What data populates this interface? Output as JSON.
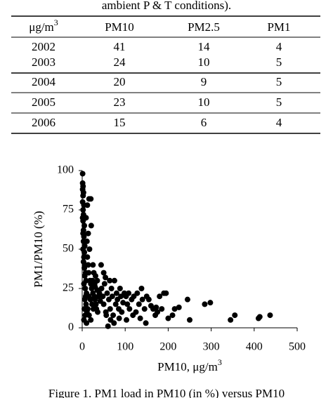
{
  "caption_top": "ambient P & T conditions).",
  "table": {
    "header": [
      {
        "text": "μg/m",
        "sup": "3"
      },
      "PM10",
      "PM2.5",
      "PM1"
    ],
    "rows": [
      [
        "2002",
        "41",
        "14",
        "4"
      ],
      [
        "2003",
        "24",
        "10",
        "5"
      ],
      [
        "2004",
        "20",
        "9",
        "5"
      ],
      [
        "2005",
        "23",
        "10",
        "5"
      ],
      [
        "2006",
        "15",
        "6",
        "4"
      ]
    ]
  },
  "chart_data": {
    "type": "scatter",
    "y_label": "PM1/PM10 (%)",
    "x_label": {
      "text": "PM10, μg/m",
      "sup": "3"
    },
    "xlim": [
      0,
      500
    ],
    "xticks": [
      0,
      100,
      200,
      300,
      400,
      500
    ],
    "ylim": [
      0,
      100
    ],
    "yticks": [
      0,
      25,
      50,
      75,
      100
    ],
    "color": "#000000",
    "x": [
      1,
      1,
      2,
      1,
      3,
      2,
      1,
      4,
      2,
      3,
      1,
      2,
      5,
      3,
      2,
      4,
      3,
      6,
      2,
      5,
      4,
      3,
      7,
      5,
      8,
      6,
      9,
      4,
      7,
      10,
      8,
      6,
      9,
      5,
      11,
      7,
      4,
      10,
      12,
      14,
      15,
      18,
      20,
      22,
      25,
      28,
      30,
      32,
      35,
      38,
      13,
      16,
      20,
      24,
      27,
      30,
      33,
      36,
      40,
      42,
      15,
      19,
      23,
      26,
      29,
      31,
      17,
      11,
      14,
      25,
      35,
      21,
      9,
      16,
      12,
      20,
      45,
      48,
      50,
      52,
      55,
      58,
      60,
      62,
      65,
      68,
      70,
      72,
      75,
      78,
      80,
      82,
      85,
      88,
      90,
      92,
      95,
      98,
      50,
      56,
      66,
      74,
      86,
      44,
      54,
      64,
      102,
      105,
      108,
      110,
      115,
      120,
      125,
      128,
      132,
      135,
      140,
      145,
      150,
      155,
      160,
      165,
      170,
      175,
      180,
      185,
      190,
      195,
      200,
      103,
      118,
      138,
      148,
      172,
      225,
      245,
      250,
      285,
      298,
      345,
      355,
      410,
      413,
      437,
      210,
      215
    ],
    "y": [
      98,
      92,
      90,
      88,
      86,
      84,
      80,
      78,
      75,
      72,
      70,
      68,
      65,
      62,
      60,
      58,
      55,
      52,
      50,
      48,
      45,
      42,
      40,
      38,
      35,
      33,
      30,
      28,
      25,
      22,
      20,
      18,
      15,
      12,
      10,
      8,
      5,
      3,
      45,
      40,
      35,
      30,
      28,
      25,
      22,
      20,
      18,
      15,
      24,
      20,
      12,
      8,
      5,
      30,
      35,
      26,
      12,
      10,
      22,
      17,
      20,
      18,
      15,
      12,
      28,
      33,
      50,
      55,
      60,
      40,
      30,
      65,
      70,
      82,
      78,
      82,
      25,
      20,
      15,
      28,
      10,
      22,
      1,
      18,
      12,
      25,
      20,
      8,
      30,
      15,
      22,
      18,
      12,
      25,
      20,
      10,
      16,
      22,
      35,
      8,
      5,
      3,
      6,
      40,
      32,
      30,
      20,
      15,
      22,
      12,
      18,
      20,
      10,
      22,
      15,
      6,
      18,
      12,
      20,
      18,
      14,
      12,
      8,
      10,
      20,
      12,
      22,
      22,
      6,
      5,
      8,
      25,
      3,
      13,
      13,
      18,
      5,
      15,
      16,
      5,
      8,
      6,
      7,
      8,
      8,
      12
    ]
  },
  "caption_bottom": "Figure 1. PM1 load in PM10 (in %) versus PM10"
}
